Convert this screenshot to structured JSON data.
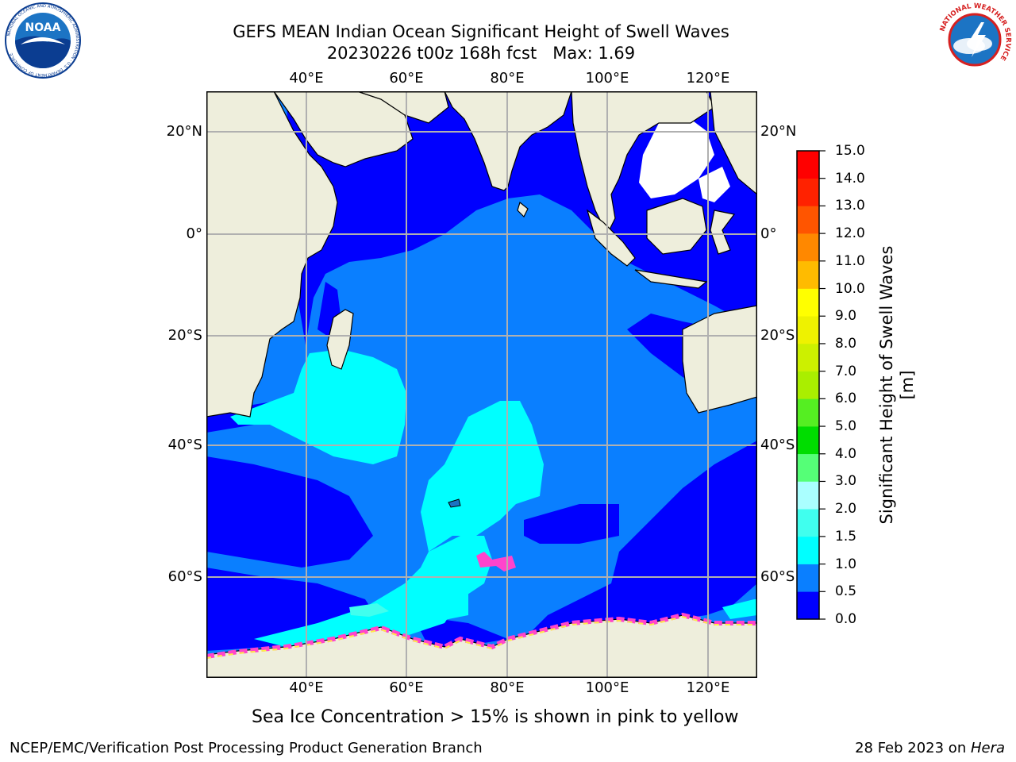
{
  "header": {
    "title_line1": "GEFS MEAN Indian Ocean Significant Height of Swell Waves",
    "title_line2": "20230226 t00z 168h fcst   Max: 1.69"
  },
  "logos": {
    "left": {
      "icon": "noaa-logo",
      "text": "NOAA",
      "ring_text": "NATIONAL OCEANIC AND ATMOSPHERIC ADMINISTRATION · U.S. DEPARTMENT OF COMMERCE"
    },
    "right": {
      "icon": "nws-logo",
      "ring_text": "NATIONAL WEATHER SERVICE"
    }
  },
  "map": {
    "longitude_labels": [
      "40°E",
      "60°E",
      "80°E",
      "100°E",
      "120°E"
    ],
    "latitude_labels": [
      "20°N",
      "0°",
      "20°S",
      "40°S",
      "60°S"
    ],
    "colors": {
      "land": "#eeeedc",
      "coast": "#000000",
      "grid": "#b0b0b0",
      "sea_ice_low": "#ff44cc",
      "sea_ice_high": "#ffee44"
    }
  },
  "colorbar": {
    "title": "Significant Height of Swell Waves [m]",
    "ticks": [
      "15.0",
      "14.0",
      "13.0",
      "12.0",
      "11.0",
      "10.0",
      "9.0",
      "8.0",
      "7.0",
      "6.0",
      "5.0",
      "4.0",
      "3.0",
      "2.0",
      "1.5",
      "1.0",
      "0.5",
      "0.0"
    ],
    "bins": [
      {
        "range": "0.0-0.5",
        "color": "#0000ff"
      },
      {
        "range": "0.5-1.0",
        "color": "#0a7fff"
      },
      {
        "range": "1.0-1.5",
        "color": "#00ffff"
      },
      {
        "range": "1.5-2.0",
        "color": "#40ffee"
      },
      {
        "range": "2.0-3.0",
        "color": "#aaffff"
      },
      {
        "range": "3.0-4.0",
        "color": "#55ff77"
      },
      {
        "range": "4.0-5.0",
        "color": "#00dd00"
      },
      {
        "range": "5.0-6.0",
        "color": "#55ee22"
      },
      {
        "range": "6.0-7.0",
        "color": "#aaee00"
      },
      {
        "range": "7.0-8.0",
        "color": "#ccf000"
      },
      {
        "range": "8.0-9.0",
        "color": "#eef200"
      },
      {
        "range": "9.0-10.0",
        "color": "#ffff00"
      },
      {
        "range": "10.0-11.0",
        "color": "#ffbb00"
      },
      {
        "range": "11.0-12.0",
        "color": "#ff8800"
      },
      {
        "range": "12.0-13.0",
        "color": "#ff5500"
      },
      {
        "range": "13.0-14.0",
        "color": "#ff2200"
      },
      {
        "range": "14.0-15.0",
        "color": "#ff0000"
      }
    ]
  },
  "note": "Sea Ice Concentration > 15% is shown in pink to yellow",
  "footer": {
    "left": "NCEP/EMC/Verification Post Processing Product Generation Branch",
    "right_prefix": "28 Feb 2023 on ",
    "right_host": "Hera"
  }
}
